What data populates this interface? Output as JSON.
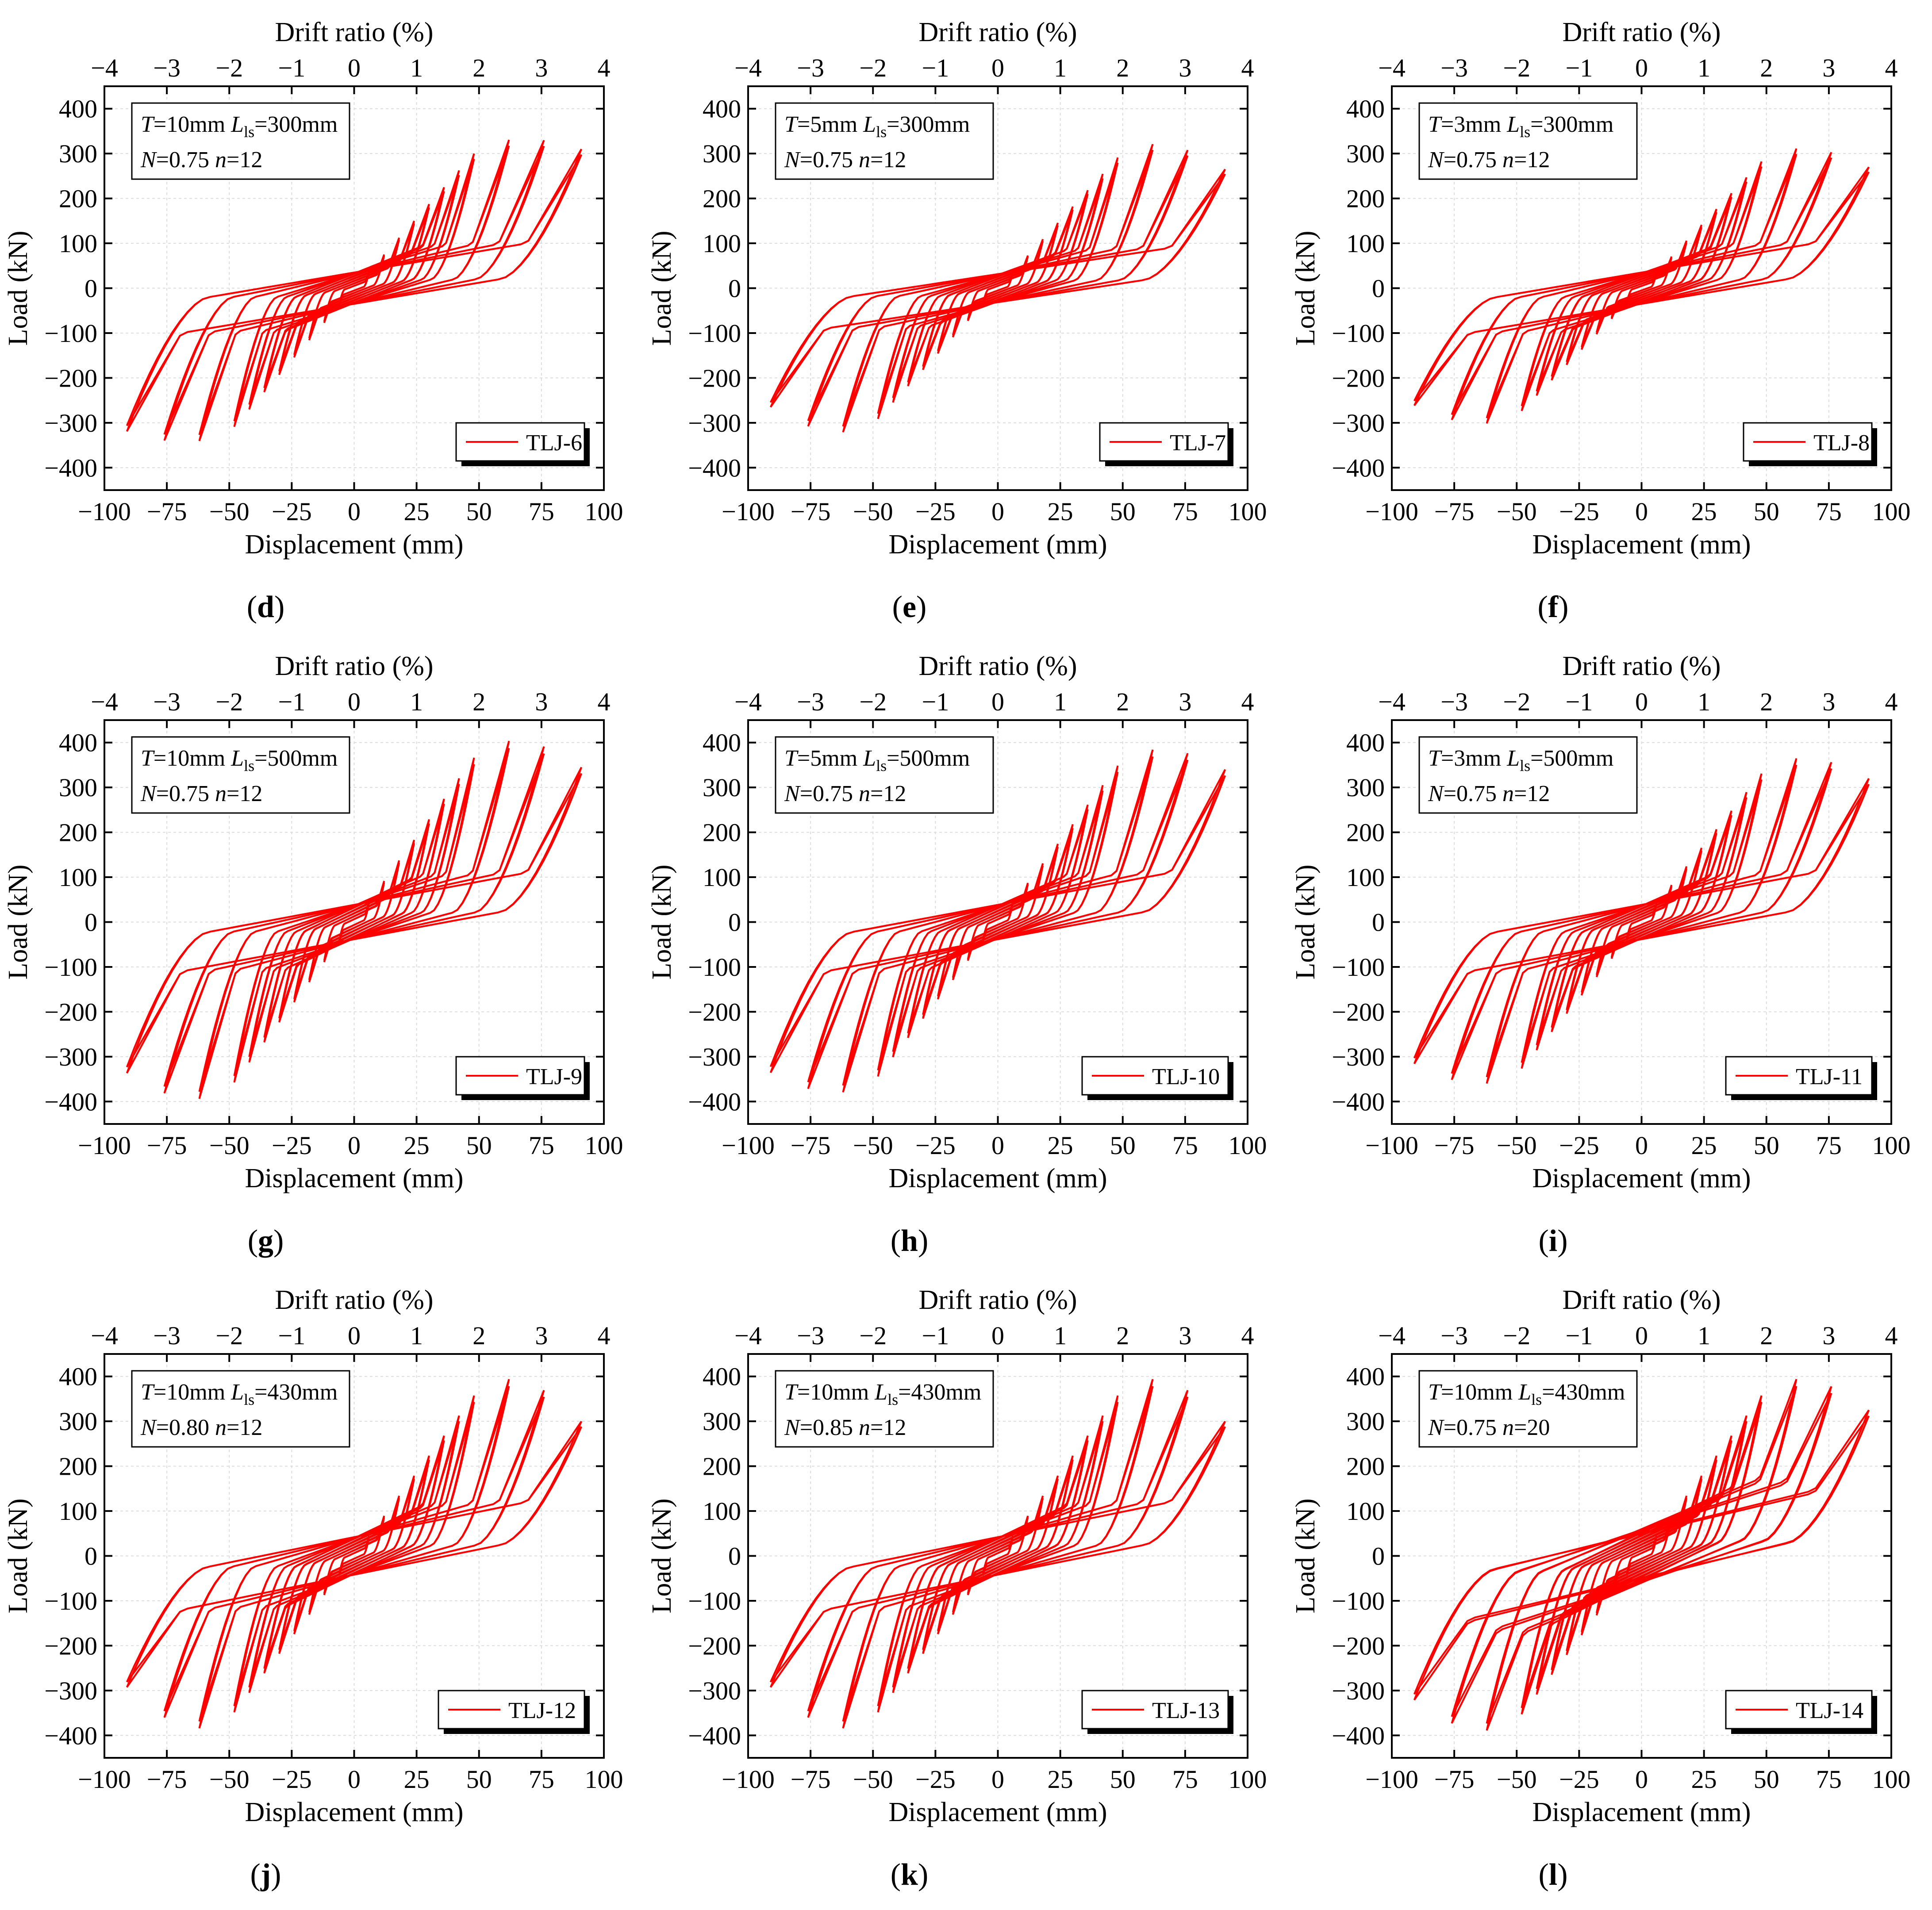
{
  "chart_data": [
    {
      "type": "line",
      "panel_label": "d",
      "legend": "TLJ-6",
      "annotation": {
        "T": "10mm",
        "Lls": "300mm",
        "N": "0.75",
        "n": "12"
      },
      "xlabel": "Displacement (mm)",
      "x2label": "Drift ratio (%)",
      "ylabel": "Load (kN)",
      "xlim": [
        -100,
        100
      ],
      "x2lim": [
        -4,
        4
      ],
      "ylim": [
        -450,
        450
      ],
      "xticks": [
        -100,
        -75,
        -50,
        -25,
        0,
        25,
        50,
        75,
        100
      ],
      "x2ticks": [
        -4,
        -3,
        -2,
        -1,
        0,
        1,
        2,
        3,
        4
      ],
      "yticks": [
        -400,
        -300,
        -200,
        -100,
        0,
        100,
        200,
        300,
        400
      ],
      "peak_pos": 340,
      "peak_neg": -350,
      "end_pos": 310,
      "end_neg": -285,
      "pinch": 100,
      "cycles_per_level": 2,
      "levels": [
        6,
        12,
        18,
        24,
        30,
        36,
        42,
        48,
        62,
        76,
        91
      ]
    },
    {
      "type": "line",
      "panel_label": "e",
      "legend": "TLJ-7",
      "annotation": {
        "T": "5mm",
        "Lls": "300mm",
        "N": "0.75",
        "n": "12"
      },
      "xlabel": "Displacement (mm)",
      "x2label": "Drift ratio (%)",
      "ylabel": "Load (kN)",
      "xlim": [
        -100,
        100
      ],
      "x2lim": [
        -4,
        4
      ],
      "ylim": [
        -450,
        450
      ],
      "xticks": [
        -100,
        -75,
        -50,
        -25,
        0,
        25,
        50,
        75,
        100
      ],
      "x2ticks": [
        -4,
        -3,
        -2,
        -1,
        0,
        1,
        2,
        3,
        4
      ],
      "yticks": [
        -400,
        -300,
        -200,
        -100,
        0,
        100,
        200,
        300,
        400
      ],
      "peak_pos": 330,
      "peak_neg": -330,
      "end_pos": 265,
      "end_neg": -260,
      "pinch": 90,
      "cycles_per_level": 2,
      "levels": [
        6,
        12,
        18,
        24,
        30,
        36,
        42,
        48,
        62,
        76,
        91
      ]
    },
    {
      "type": "line",
      "panel_label": "f",
      "legend": "TLJ-8",
      "annotation": {
        "T": "3mm",
        "Lls": "300mm",
        "N": "0.75",
        "n": "12"
      },
      "xlabel": "Displacement (mm)",
      "x2label": "Drift ratio (%)",
      "ylabel": "Load (kN)",
      "xlim": [
        -100,
        100
      ],
      "x2lim": [
        -4,
        4
      ],
      "ylim": [
        -450,
        450
      ],
      "xticks": [
        -100,
        -75,
        -50,
        -25,
        0,
        25,
        50,
        75,
        100
      ],
      "x2ticks": [
        -4,
        -3,
        -2,
        -1,
        0,
        1,
        2,
        3,
        4
      ],
      "yticks": [
        -400,
        -300,
        -200,
        -100,
        0,
        100,
        200,
        300,
        400
      ],
      "peak_pos": 320,
      "peak_neg": -310,
      "end_pos": 270,
      "end_neg": -240,
      "pinch": 100,
      "cycles_per_level": 2,
      "levels": [
        6,
        12,
        18,
        24,
        30,
        36,
        42,
        48,
        62,
        76,
        91
      ]
    },
    {
      "type": "line",
      "panel_label": "g",
      "legend": "TLJ-9",
      "annotation": {
        "T": "10mm",
        "Lls": "500mm",
        "N": "0.75",
        "n": "12"
      },
      "xlabel": "Displacement (mm)",
      "x2label": "Drift ratio (%)",
      "ylabel": "Load (kN)",
      "xlim": [
        -100,
        100
      ],
      "x2lim": [
        -4,
        4
      ],
      "ylim": [
        -450,
        450
      ],
      "xticks": [
        -100,
        -75,
        -50,
        -25,
        0,
        25,
        50,
        75,
        100
      ],
      "x2ticks": [
        -4,
        -3,
        -2,
        -1,
        0,
        1,
        2,
        3,
        4
      ],
      "yticks": [
        -400,
        -300,
        -200,
        -100,
        0,
        100,
        200,
        300,
        400
      ],
      "peak_pos": 415,
      "peak_neg": -405,
      "end_pos": 345,
      "end_neg": -320,
      "pinch": 110,
      "cycles_per_level": 2,
      "levels": [
        6,
        12,
        18,
        24,
        30,
        36,
        42,
        48,
        62,
        76,
        91
      ]
    },
    {
      "type": "line",
      "panel_label": "h",
      "legend": "TLJ-10",
      "annotation": {
        "T": "5mm",
        "Lls": "500mm",
        "N": "0.75",
        "n": "12"
      },
      "xlabel": "Displacement (mm)",
      "x2label": "Drift ratio (%)",
      "ylabel": "Load (kN)",
      "xlim": [
        -100,
        100
      ],
      "x2lim": [
        -4,
        4
      ],
      "ylim": [
        -450,
        450
      ],
      "xticks": [
        -100,
        -75,
        -50,
        -25,
        0,
        25,
        50,
        75,
        100
      ],
      "x2ticks": [
        -4,
        -3,
        -2,
        -1,
        0,
        1,
        2,
        3,
        4
      ],
      "yticks": [
        -400,
        -300,
        -200,
        -100,
        0,
        100,
        200,
        300,
        400
      ],
      "peak_pos": 395,
      "peak_neg": -390,
      "end_pos": 340,
      "end_neg": -320,
      "pinch": 110,
      "cycles_per_level": 2,
      "levels": [
        6,
        12,
        18,
        24,
        30,
        36,
        42,
        48,
        62,
        76,
        91
      ]
    },
    {
      "type": "line",
      "panel_label": "i",
      "legend": "TLJ-11",
      "annotation": {
        "T": "3mm",
        "Lls": "500mm",
        "N": "0.75",
        "n": "12"
      },
      "xlabel": "Displacement (mm)",
      "x2label": "Drift ratio (%)",
      "ylabel": "Load (kN)",
      "xlim": [
        -100,
        100
      ],
      "x2lim": [
        -4,
        4
      ],
      "ylim": [
        -450,
        450
      ],
      "xticks": [
        -100,
        -75,
        -50,
        -25,
        0,
        25,
        50,
        75,
        100
      ],
      "x2ticks": [
        -4,
        -3,
        -2,
        -1,
        0,
        1,
        2,
        3,
        4
      ],
      "yticks": [
        -400,
        -300,
        -200,
        -100,
        0,
        100,
        200,
        300,
        400
      ],
      "peak_pos": 375,
      "peak_neg": -370,
      "end_pos": 320,
      "end_neg": -320,
      "pinch": 110,
      "cycles_per_level": 2,
      "levels": [
        6,
        12,
        18,
        24,
        30,
        36,
        42,
        48,
        62,
        76,
        91
      ]
    },
    {
      "type": "line",
      "panel_label": "j",
      "legend": "TLJ-12",
      "annotation": {
        "T": "10mm",
        "Lls": "430mm",
        "N": "0.80",
        "n": "12"
      },
      "xlabel": "Displacement (mm)",
      "x2label": "Drift ratio (%)",
      "ylabel": "Load (kN)",
      "xlim": [
        -100,
        100
      ],
      "x2lim": [
        -4,
        4
      ],
      "ylim": [
        -450,
        450
      ],
      "xticks": [
        -100,
        -75,
        -50,
        -25,
        0,
        25,
        50,
        75,
        100
      ],
      "x2ticks": [
        -4,
        -3,
        -2,
        -1,
        0,
        1,
        2,
        3,
        4
      ],
      "yticks": [
        -400,
        -300,
        -200,
        -100,
        0,
        100,
        200,
        300,
        400
      ],
      "peak_pos": 405,
      "peak_neg": -395,
      "end_pos": 300,
      "end_neg": -290,
      "pinch": 120,
      "cycles_per_level": 2,
      "levels": [
        6,
        12,
        18,
        24,
        30,
        36,
        42,
        48,
        62,
        76,
        91
      ]
    },
    {
      "type": "line",
      "panel_label": "k",
      "legend": "TLJ-13",
      "annotation": {
        "T": "10mm",
        "Lls": "430mm",
        "N": "0.85",
        "n": "12"
      },
      "xlabel": "Displacement (mm)",
      "x2label": "Drift ratio (%)",
      "ylabel": "Load (kN)",
      "xlim": [
        -100,
        100
      ],
      "x2lim": [
        -4,
        4
      ],
      "ylim": [
        -450,
        450
      ],
      "xticks": [
        -100,
        -75,
        -50,
        -25,
        0,
        25,
        50,
        75,
        100
      ],
      "x2ticks": [
        -4,
        -3,
        -2,
        -1,
        0,
        1,
        2,
        3,
        4
      ],
      "yticks": [
        -400,
        -300,
        -200,
        -100,
        0,
        100,
        200,
        300,
        400
      ],
      "peak_pos": 405,
      "peak_neg": -395,
      "end_pos": 300,
      "end_neg": -290,
      "pinch": 120,
      "cycles_per_level": 2,
      "levels": [
        6,
        12,
        18,
        24,
        30,
        36,
        42,
        48,
        62,
        76,
        91
      ]
    },
    {
      "type": "line",
      "panel_label": "l",
      "legend": "TLJ-14",
      "annotation": {
        "T": "10mm",
        "Lls": "430mm",
        "N": "0.75",
        "n": "20"
      },
      "xlabel": "Displacement (mm)",
      "x2label": "Drift ratio (%)",
      "ylabel": "Load (kN)",
      "xlim": [
        -100,
        100
      ],
      "x2lim": [
        -4,
        4
      ],
      "ylim": [
        -450,
        450
      ],
      "xticks": [
        -100,
        -75,
        -50,
        -25,
        0,
        25,
        50,
        75,
        100
      ],
      "x2ticks": [
        -4,
        -3,
        -2,
        -1,
        0,
        1,
        2,
        3,
        4
      ],
      "yticks": [
        -400,
        -300,
        -200,
        -100,
        0,
        100,
        200,
        300,
        400
      ],
      "peak_pos": 405,
      "peak_neg": -400,
      "end_pos": 325,
      "end_neg": -355,
      "pinch": 200,
      "cycles_per_level": 2,
      "levels": [
        6,
        12,
        18,
        24,
        30,
        36,
        42,
        48,
        62,
        76,
        91
      ]
    }
  ],
  "style": {
    "curve_color": "#ff0000",
    "axis_color": "#000000",
    "grid_color": "#dcdcdc",
    "legend_shadow": "#000000"
  }
}
